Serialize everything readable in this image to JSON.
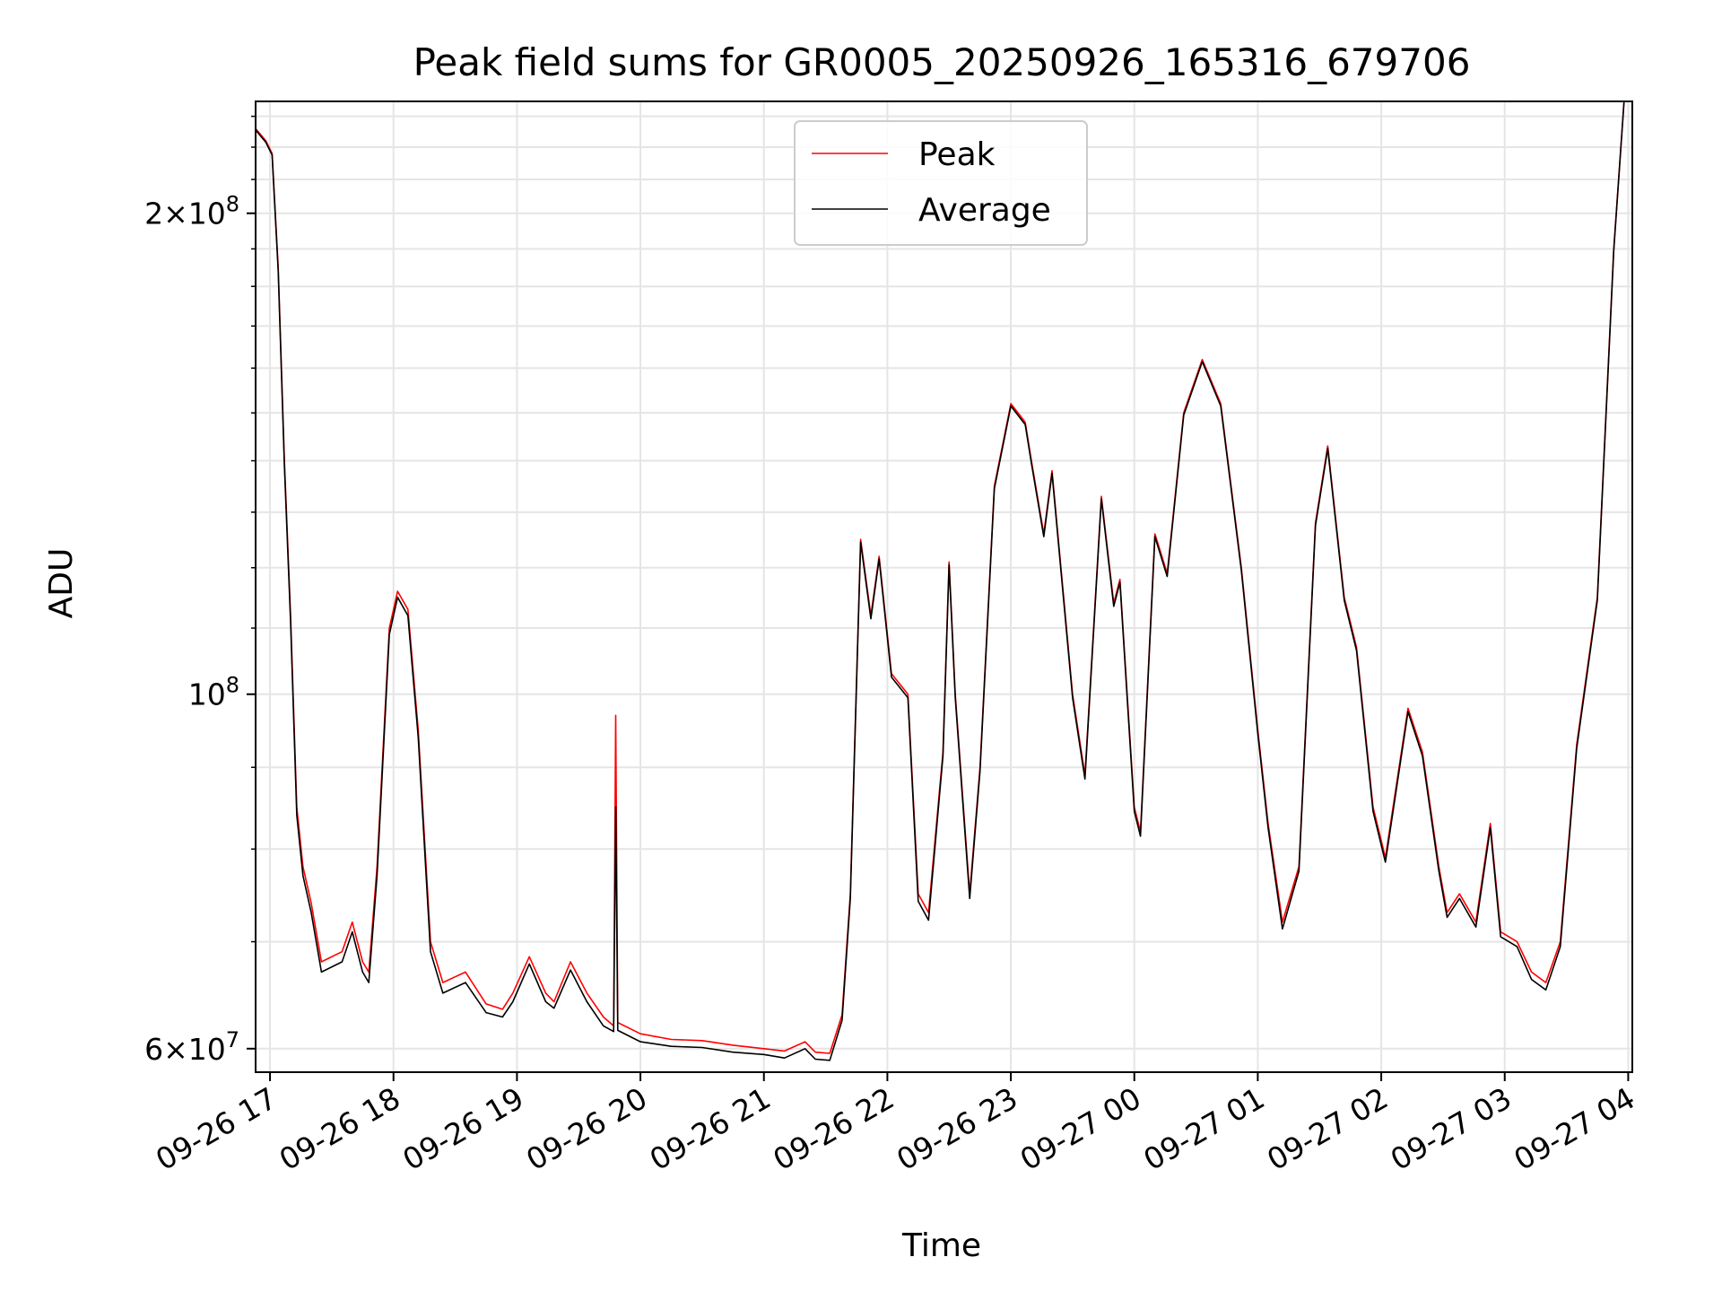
{
  "chart_data": {
    "type": "line",
    "title": "Peak field sums for GR0005_20250926_165316_679706",
    "xlabel": "Time",
    "ylabel": "ADU",
    "yscale": "log",
    "ylim": [
      58000000,
      235000000
    ],
    "xlim": [
      "2025-09-26 16:53",
      "2025-09-27 04:02"
    ],
    "grid": true,
    "legend_position": "top-center",
    "x_tick_labels": [
      "09-26 17",
      "09-26 18",
      "09-26 19",
      "09-26 20",
      "09-26 21",
      "09-26 22",
      "09-26 23",
      "09-27 00",
      "09-27 01",
      "09-27 02",
      "09-27 03",
      "09-27 04"
    ],
    "y_tick_labels": [
      {
        "value": 60000000,
        "base": "6",
        "times": "×",
        "exp_base": "10",
        "exp": "7"
      },
      {
        "value": 100000000,
        "base": "",
        "times": "",
        "exp_base": "10",
        "exp": "8"
      },
      {
        "value": 200000000,
        "base": "2",
        "times": "×",
        "exp_base": "10",
        "exp": "8"
      }
    ],
    "series": [
      {
        "name": "Peak",
        "color": "#ff0000",
        "points": [
          [
            "2025-09-26 16:53",
            226000000
          ],
          [
            "2025-09-26 16:58",
            222000000
          ],
          [
            "2025-09-26 17:01",
            218000000
          ],
          [
            "2025-09-26 17:04",
            185000000
          ],
          [
            "2025-09-26 17:07",
            140000000
          ],
          [
            "2025-09-26 17:10",
            112000000
          ],
          [
            "2025-09-26 17:13",
            85000000
          ],
          [
            "2025-09-26 17:16",
            78000000
          ],
          [
            "2025-09-26 17:20",
            74000000
          ],
          [
            "2025-09-26 17:25",
            68000000
          ],
          [
            "2025-09-26 17:35",
            69000000
          ],
          [
            "2025-09-26 17:40",
            72000000
          ],
          [
            "2025-09-26 17:45",
            68000000
          ],
          [
            "2025-09-26 17:48",
            67000000
          ],
          [
            "2025-09-26 17:52",
            78000000
          ],
          [
            "2025-09-26 17:58",
            110000000
          ],
          [
            "2025-09-26 18:02",
            116000000
          ],
          [
            "2025-09-26 18:07",
            113000000
          ],
          [
            "2025-09-26 18:12",
            95000000
          ],
          [
            "2025-09-26 18:18",
            70000000
          ],
          [
            "2025-09-26 18:24",
            66000000
          ],
          [
            "2025-09-26 18:35",
            67000000
          ],
          [
            "2025-09-26 18:45",
            64000000
          ],
          [
            "2025-09-26 18:53",
            63500000
          ],
          [
            "2025-09-26 18:58",
            65000000
          ],
          [
            "2025-09-26 19:06",
            68500000
          ],
          [
            "2025-09-26 19:14",
            65000000
          ],
          [
            "2025-09-26 19:18",
            64200000
          ],
          [
            "2025-09-26 19:26",
            68000000
          ],
          [
            "2025-09-26 19:34",
            65000000
          ],
          [
            "2025-09-26 19:42",
            62800000
          ],
          [
            "2025-09-26 19:47",
            62000000
          ],
          [
            "2025-09-26 19:48",
            97000000
          ],
          [
            "2025-09-26 19:49",
            62300000
          ],
          [
            "2025-09-26 20:00",
            61300000
          ],
          [
            "2025-09-26 20:15",
            60800000
          ],
          [
            "2025-09-26 20:30",
            60700000
          ],
          [
            "2025-09-26 20:45",
            60300000
          ],
          [
            "2025-09-26 21:00",
            60000000
          ],
          [
            "2025-09-26 21:10",
            59800000
          ],
          [
            "2025-09-26 21:20",
            60600000
          ],
          [
            "2025-09-26 21:25",
            59700000
          ],
          [
            "2025-09-26 21:32",
            59600000
          ],
          [
            "2025-09-26 21:38",
            63000000
          ],
          [
            "2025-09-26 21:42",
            75000000
          ],
          [
            "2025-09-26 21:47",
            125000000
          ],
          [
            "2025-09-26 21:52",
            112000000
          ],
          [
            "2025-09-26 21:56",
            122000000
          ],
          [
            "2025-09-26 22:02",
            103000000
          ],
          [
            "2025-09-26 22:10",
            100000000
          ],
          [
            "2025-09-26 22:15",
            75000000
          ],
          [
            "2025-09-26 22:20",
            73000000
          ],
          [
            "2025-09-26 22:27",
            92000000
          ],
          [
            "2025-09-26 22:30",
            121000000
          ],
          [
            "2025-09-26 22:33",
            100000000
          ],
          [
            "2025-09-26 22:40",
            75000000
          ],
          [
            "2025-09-26 22:45",
            90000000
          ],
          [
            "2025-09-26 22:52",
            135000000
          ],
          [
            "2025-09-26 23:00",
            152000000
          ],
          [
            "2025-09-26 23:07",
            148000000
          ],
          [
            "2025-09-26 23:10",
            140000000
          ],
          [
            "2025-09-26 23:16",
            126000000
          ],
          [
            "2025-09-26 23:20",
            138000000
          ],
          [
            "2025-09-26 23:30",
            100000000
          ],
          [
            "2025-09-26 23:36",
            89000000
          ],
          [
            "2025-09-26 23:44",
            133000000
          ],
          [
            "2025-09-26 23:50",
            114000000
          ],
          [
            "2025-09-26 23:53",
            118000000
          ],
          [
            "2025-09-27 00:00",
            85000000
          ],
          [
            "2025-09-27 00:03",
            82000000
          ],
          [
            "2025-09-27 00:10",
            126000000
          ],
          [
            "2025-09-27 00:16",
            119000000
          ],
          [
            "2025-09-27 00:24",
            150000000
          ],
          [
            "2025-09-27 00:33",
            162000000
          ],
          [
            "2025-09-27 00:42",
            152000000
          ],
          [
            "2025-09-27 00:52",
            120000000
          ],
          [
            "2025-09-27 01:00",
            95000000
          ],
          [
            "2025-09-27 01:05",
            83000000
          ],
          [
            "2025-09-27 01:12",
            72000000
          ],
          [
            "2025-09-27 01:20",
            78000000
          ],
          [
            "2025-09-27 01:28",
            128000000
          ],
          [
            "2025-09-27 01:34",
            143000000
          ],
          [
            "2025-09-27 01:42",
            115000000
          ],
          [
            "2025-09-27 01:48",
            107000000
          ],
          [
            "2025-09-27 01:56",
            85000000
          ],
          [
            "2025-09-27 02:02",
            79000000
          ],
          [
            "2025-09-27 02:13",
            98000000
          ],
          [
            "2025-09-27 02:20",
            92000000
          ],
          [
            "2025-09-27 02:28",
            78000000
          ],
          [
            "2025-09-27 02:32",
            73000000
          ],
          [
            "2025-09-27 02:38",
            75000000
          ],
          [
            "2025-09-27 02:46",
            72000000
          ],
          [
            "2025-09-27 02:53",
            83000000
          ],
          [
            "2025-09-27 02:58",
            71000000
          ],
          [
            "2025-09-27 03:06",
            70000000
          ],
          [
            "2025-09-27 03:13",
            67000000
          ],
          [
            "2025-09-27 03:20",
            66000000
          ],
          [
            "2025-09-27 03:27",
            70000000
          ],
          [
            "2025-09-27 03:35",
            93000000
          ],
          [
            "2025-09-27 03:45",
            115000000
          ],
          [
            "2025-09-27 03:53",
            190000000
          ],
          [
            "2025-09-27 03:58",
            235000000
          ]
        ]
      },
      {
        "name": "Average",
        "color": "#000000",
        "points": [
          [
            "2025-09-26 16:53",
            225500000
          ],
          [
            "2025-09-26 16:58",
            221500000
          ],
          [
            "2025-09-26 17:01",
            217500000
          ],
          [
            "2025-09-26 17:04",
            184000000
          ],
          [
            "2025-09-26 17:07",
            139000000
          ],
          [
            "2025-09-26 17:10",
            111000000
          ],
          [
            "2025-09-26 17:13",
            84000000
          ],
          [
            "2025-09-26 17:16",
            77000000
          ],
          [
            "2025-09-26 17:20",
            73000000
          ],
          [
            "2025-09-26 17:25",
            67000000
          ],
          [
            "2025-09-26 17:35",
            68000000
          ],
          [
            "2025-09-26 17:40",
            71000000
          ],
          [
            "2025-09-26 17:45",
            67000000
          ],
          [
            "2025-09-26 17:48",
            66000000
          ],
          [
            "2025-09-26 17:52",
            77000000
          ],
          [
            "2025-09-26 17:58",
            109000000
          ],
          [
            "2025-09-26 18:02",
            115000000
          ],
          [
            "2025-09-26 18:07",
            112000000
          ],
          [
            "2025-09-26 18:12",
            94000000
          ],
          [
            "2025-09-26 18:18",
            69000000
          ],
          [
            "2025-09-26 18:24",
            65000000
          ],
          [
            "2025-09-26 18:35",
            66000000
          ],
          [
            "2025-09-26 18:45",
            63200000
          ],
          [
            "2025-09-26 18:53",
            62800000
          ],
          [
            "2025-09-26 18:58",
            64200000
          ],
          [
            "2025-09-26 19:06",
            67800000
          ],
          [
            "2025-09-26 19:14",
            64200000
          ],
          [
            "2025-09-26 19:18",
            63600000
          ],
          [
            "2025-09-26 19:26",
            67200000
          ],
          [
            "2025-09-26 19:34",
            64200000
          ],
          [
            "2025-09-26 19:42",
            62000000
          ],
          [
            "2025-09-26 19:47",
            61500000
          ],
          [
            "2025-09-26 19:48",
            85000000
          ],
          [
            "2025-09-26 19:49",
            61600000
          ],
          [
            "2025-09-26 20:00",
            60600000
          ],
          [
            "2025-09-26 20:15",
            60200000
          ],
          [
            "2025-09-26 20:30",
            60100000
          ],
          [
            "2025-09-26 20:45",
            59700000
          ],
          [
            "2025-09-26 21:00",
            59500000
          ],
          [
            "2025-09-26 21:10",
            59200000
          ],
          [
            "2025-09-26 21:20",
            60000000
          ],
          [
            "2025-09-26 21:25",
            59100000
          ],
          [
            "2025-09-26 21:32",
            59000000
          ],
          [
            "2025-09-26 21:38",
            62500000
          ],
          [
            "2025-09-26 21:42",
            74500000
          ],
          [
            "2025-09-26 21:47",
            124500000
          ],
          [
            "2025-09-26 21:52",
            111500000
          ],
          [
            "2025-09-26 21:56",
            121500000
          ],
          [
            "2025-09-26 22:02",
            102500000
          ],
          [
            "2025-09-26 22:10",
            99500000
          ],
          [
            "2025-09-26 22:15",
            74200000
          ],
          [
            "2025-09-26 22:20",
            72200000
          ],
          [
            "2025-09-26 22:27",
            91500000
          ],
          [
            "2025-09-26 22:30",
            120500000
          ],
          [
            "2025-09-26 22:33",
            99500000
          ],
          [
            "2025-09-26 22:40",
            74500000
          ],
          [
            "2025-09-26 22:45",
            89500000
          ],
          [
            "2025-09-26 22:52",
            134500000
          ],
          [
            "2025-09-26 23:00",
            151500000
          ],
          [
            "2025-09-26 23:07",
            147500000
          ],
          [
            "2025-09-26 23:10",
            139500000
          ],
          [
            "2025-09-26 23:16",
            125500000
          ],
          [
            "2025-09-26 23:20",
            137500000
          ],
          [
            "2025-09-26 23:30",
            99500000
          ],
          [
            "2025-09-26 23:36",
            88500000
          ],
          [
            "2025-09-26 23:44",
            132500000
          ],
          [
            "2025-09-26 23:50",
            113500000
          ],
          [
            "2025-09-26 23:53",
            117500000
          ],
          [
            "2025-09-27 00:00",
            84500000
          ],
          [
            "2025-09-27 00:03",
            81500000
          ],
          [
            "2025-09-27 00:10",
            125500000
          ],
          [
            "2025-09-27 00:16",
            118500000
          ],
          [
            "2025-09-27 00:24",
            149500000
          ],
          [
            "2025-09-27 00:33",
            161500000
          ],
          [
            "2025-09-27 00:42",
            151500000
          ],
          [
            "2025-09-27 00:52",
            119500000
          ],
          [
            "2025-09-27 01:00",
            94500000
          ],
          [
            "2025-09-27 01:05",
            82500000
          ],
          [
            "2025-09-27 01:12",
            71300000
          ],
          [
            "2025-09-27 01:20",
            77500000
          ],
          [
            "2025-09-27 01:28",
            127500000
          ],
          [
            "2025-09-27 01:34",
            142500000
          ],
          [
            "2025-09-27 01:42",
            114500000
          ],
          [
            "2025-09-27 01:48",
            106500000
          ],
          [
            "2025-09-27 01:56",
            84500000
          ],
          [
            "2025-09-27 02:02",
            78500000
          ],
          [
            "2025-09-27 02:13",
            97500000
          ],
          [
            "2025-09-27 02:20",
            91500000
          ],
          [
            "2025-09-27 02:28",
            77500000
          ],
          [
            "2025-09-27 02:32",
            72500000
          ],
          [
            "2025-09-27 02:38",
            74500000
          ],
          [
            "2025-09-27 02:46",
            71500000
          ],
          [
            "2025-09-27 02:53",
            82500000
          ],
          [
            "2025-09-27 02:58",
            70500000
          ],
          [
            "2025-09-27 03:06",
            69500000
          ],
          [
            "2025-09-27 03:13",
            66300000
          ],
          [
            "2025-09-27 03:20",
            65300000
          ],
          [
            "2025-09-27 03:27",
            69500000
          ],
          [
            "2025-09-27 03:35",
            92500000
          ],
          [
            "2025-09-27 03:45",
            114500000
          ],
          [
            "2025-09-27 03:53",
            189500000
          ],
          [
            "2025-09-27 03:58",
            235000000
          ]
        ]
      }
    ]
  }
}
